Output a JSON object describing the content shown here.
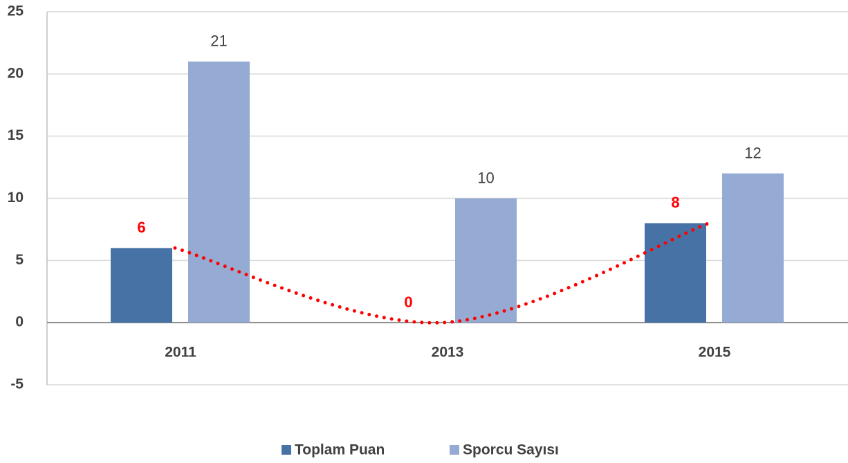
{
  "chart_data": {
    "type": "bar",
    "categories": [
      "2011",
      "2013",
      "2015"
    ],
    "series": [
      {
        "name": "Toplam Puan",
        "color": "#4672a6",
        "values": [
          6,
          0,
          8
        ],
        "label_color": "#ff0000",
        "label_bold": true,
        "trendline": {
          "color": "#ff0000",
          "style": "dotted",
          "smooth": true
        }
      },
      {
        "name": "Sporcu Sayısı",
        "color": "#95abd3",
        "values": [
          21,
          10,
          12
        ],
        "label_color": "#404040",
        "label_bold": false
      }
    ],
    "ylim": [
      -5,
      25
    ],
    "yticks": [
      -5,
      0,
      5,
      10,
      15,
      20,
      25
    ],
    "grid": true,
    "legend": "bottom"
  }
}
